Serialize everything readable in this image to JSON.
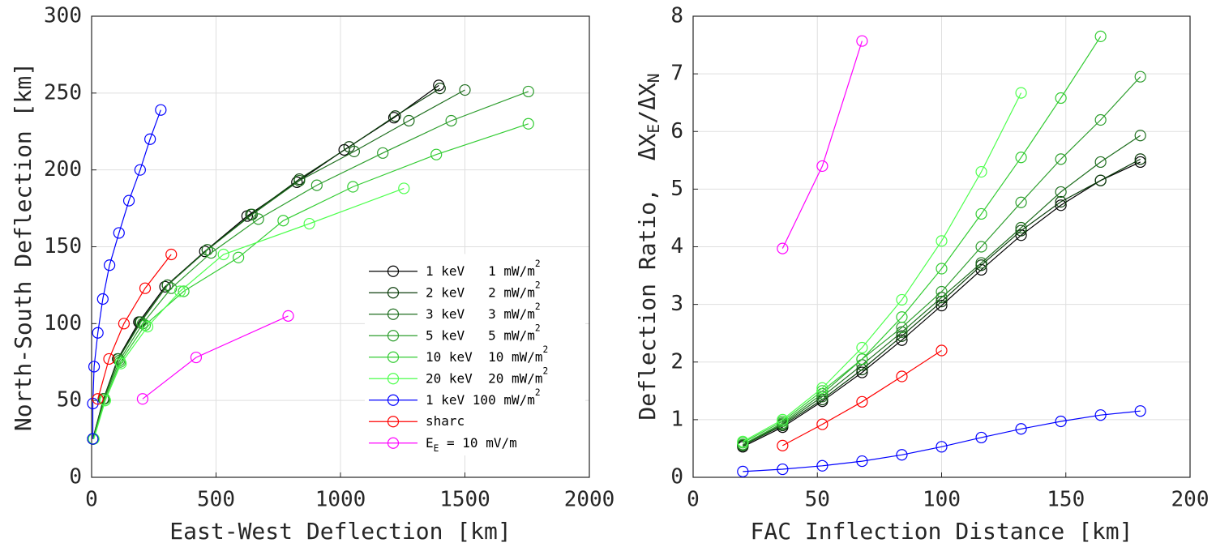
{
  "chart_data": [
    {
      "type": "line",
      "xlabel": "East-West Deflection [km]",
      "ylabel": "North-South Deflection [km]",
      "xlim": [
        0,
        2000
      ],
      "ylim": [
        0,
        300
      ],
      "xticks": [
        0,
        500,
        1000,
        1500,
        2000
      ],
      "yticks": [
        0,
        50,
        100,
        150,
        200,
        250,
        300
      ],
      "grid": true,
      "legend": "southeast",
      "series": [
        {
          "name": "1 keV   1 mW/m^2",
          "color": "#000000",
          "x": [
            5,
            48,
            105,
            190,
            295,
            455,
            625,
            825,
            1015,
            1215,
            1395
          ],
          "values": [
            25,
            51,
            77,
            101,
            124,
            147,
            170,
            192,
            213,
            234,
            255
          ]
        },
        {
          "name": "2 keV   2 mW/m^2",
          "color": "#0b3d0b",
          "x": [
            5,
            48,
            107,
            195,
            305,
            465,
            640,
            835,
            1035,
            1220,
            1400
          ],
          "values": [
            25,
            51,
            77,
            101,
            125,
            148,
            171,
            194,
            215,
            235,
            253
          ]
        },
        {
          "name": "3 keV   3 mW/m^2",
          "color": "#1f6e1f",
          "x": [
            6,
            50,
            108,
            198,
            305,
            465,
            645,
            835,
            1055,
            1275,
            1500
          ],
          "values": [
            25,
            51,
            77,
            101,
            125,
            148,
            171,
            193,
            212,
            232,
            252
          ]
        },
        {
          "name": "5 keV   5 mW/m^2",
          "color": "#2e9e2e",
          "x": [
            7,
            52,
            112,
            205,
            320,
            480,
            670,
            905,
            1170,
            1445,
            1755
          ],
          "values": [
            25,
            51,
            76,
            100,
            123,
            146,
            168,
            190,
            211,
            232,
            251
          ]
        },
        {
          "name": "10 keV  10 mW/m^2",
          "color": "#33cc33",
          "x": [
            8,
            54,
            115,
            215,
            370,
            590,
            770,
            1050,
            1385,
            1755
          ],
          "values": [
            25,
            50,
            75,
            99,
            121,
            143,
            167,
            189,
            210,
            230
          ]
        },
        {
          "name": "20 keV  20 mW/m^2",
          "color": "#4dff4d",
          "x": [
            9,
            55,
            118,
            225,
            355,
            530,
            875,
            1255
          ],
          "values": [
            25,
            50,
            74,
            98,
            121,
            145,
            165,
            188
          ]
        },
        {
          "name": "1 keV 100 mW/m^2",
          "color": "#0000ff",
          "x": [
            5,
            5,
            10,
            25,
            45,
            72,
            110,
            150,
            195,
            235,
            278
          ],
          "values": [
            25,
            48,
            72,
            94,
            116,
            138,
            159,
            180,
            200,
            220,
            239
          ]
        },
        {
          "name": "sharc",
          "color": "#ff0000",
          "x": [
            25,
            70,
            130,
            215,
            320
          ],
          "values": [
            51,
            77,
            100,
            123,
            145
          ]
        },
        {
          "name": "E_E = 10 mV/m",
          "color": "#ff00ff",
          "x": [
            205,
            420,
            790
          ],
          "values": [
            51,
            78,
            105
          ]
        }
      ]
    },
    {
      "type": "line",
      "xlabel": "FAC Inflection Distance [km]",
      "ylabel": "Deflection Ratio,  ΔX_E/ΔX_N",
      "xlim": [
        0,
        200
      ],
      "ylim": [
        0,
        8
      ],
      "xticks": [
        0,
        50,
        100,
        150,
        200
      ],
      "yticks": [
        0,
        1,
        2,
        3,
        4,
        5,
        6,
        7,
        8
      ],
      "grid": true,
      "series": [
        {
          "color": "#000000",
          "x": [
            20,
            36,
            52,
            68,
            84,
            100,
            116,
            132,
            148,
            164,
            180
          ],
          "values": [
            0.53,
            0.87,
            1.32,
            1.82,
            2.38,
            2.98,
            3.6,
            4.2,
            4.72,
            5.15,
            5.47
          ]
        },
        {
          "color": "#0b3d0b",
          "x": [
            20,
            36,
            52,
            68,
            84,
            100,
            116,
            132,
            148,
            164,
            180
          ],
          "values": [
            0.55,
            0.9,
            1.35,
            1.87,
            2.45,
            3.05,
            3.68,
            4.28,
            4.78,
            5.15,
            5.52
          ]
        },
        {
          "color": "#1f6e1f",
          "x": [
            20,
            36,
            52,
            68,
            84,
            100,
            116,
            132,
            148,
            164,
            180
          ],
          "values": [
            0.56,
            0.92,
            1.4,
            1.95,
            2.52,
            3.12,
            3.72,
            4.33,
            4.95,
            5.47,
            5.93
          ]
        },
        {
          "color": "#2e9e2e",
          "x": [
            20,
            36,
            52,
            68,
            84,
            100,
            116,
            132,
            148,
            164,
            180
          ],
          "values": [
            0.57,
            0.94,
            1.45,
            2.05,
            2.6,
            3.22,
            4.0,
            4.77,
            5.52,
            6.2,
            6.95
          ]
        },
        {
          "color": "#33cc33",
          "x": [
            20,
            36,
            52,
            68,
            84,
            100,
            116,
            132,
            148,
            164
          ],
          "values": [
            0.6,
            0.97,
            1.5,
            2.05,
            2.78,
            3.62,
            4.57,
            5.55,
            6.58,
            7.65
          ]
        },
        {
          "color": "#4dff4d",
          "x": [
            20,
            36,
            52,
            68,
            84,
            100,
            116,
            132
          ],
          "values": [
            0.62,
            1.0,
            1.55,
            2.25,
            3.08,
            4.1,
            5.3,
            6.67
          ]
        },
        {
          "color": "#0000ff",
          "x": [
            20,
            36,
            52,
            68,
            84,
            100,
            116,
            132,
            148,
            164,
            180
          ],
          "values": [
            0.1,
            0.14,
            0.2,
            0.28,
            0.39,
            0.53,
            0.69,
            0.84,
            0.97,
            1.08,
            1.15
          ]
        },
        {
          "color": "#ff0000",
          "x": [
            36,
            52,
            68,
            84,
            100
          ],
          "values": [
            0.55,
            0.92,
            1.31,
            1.75,
            2.2
          ]
        },
        {
          "color": "#ff00ff",
          "x": [
            36,
            52,
            68
          ],
          "values": [
            3.97,
            5.4,
            7.57
          ]
        }
      ]
    }
  ]
}
